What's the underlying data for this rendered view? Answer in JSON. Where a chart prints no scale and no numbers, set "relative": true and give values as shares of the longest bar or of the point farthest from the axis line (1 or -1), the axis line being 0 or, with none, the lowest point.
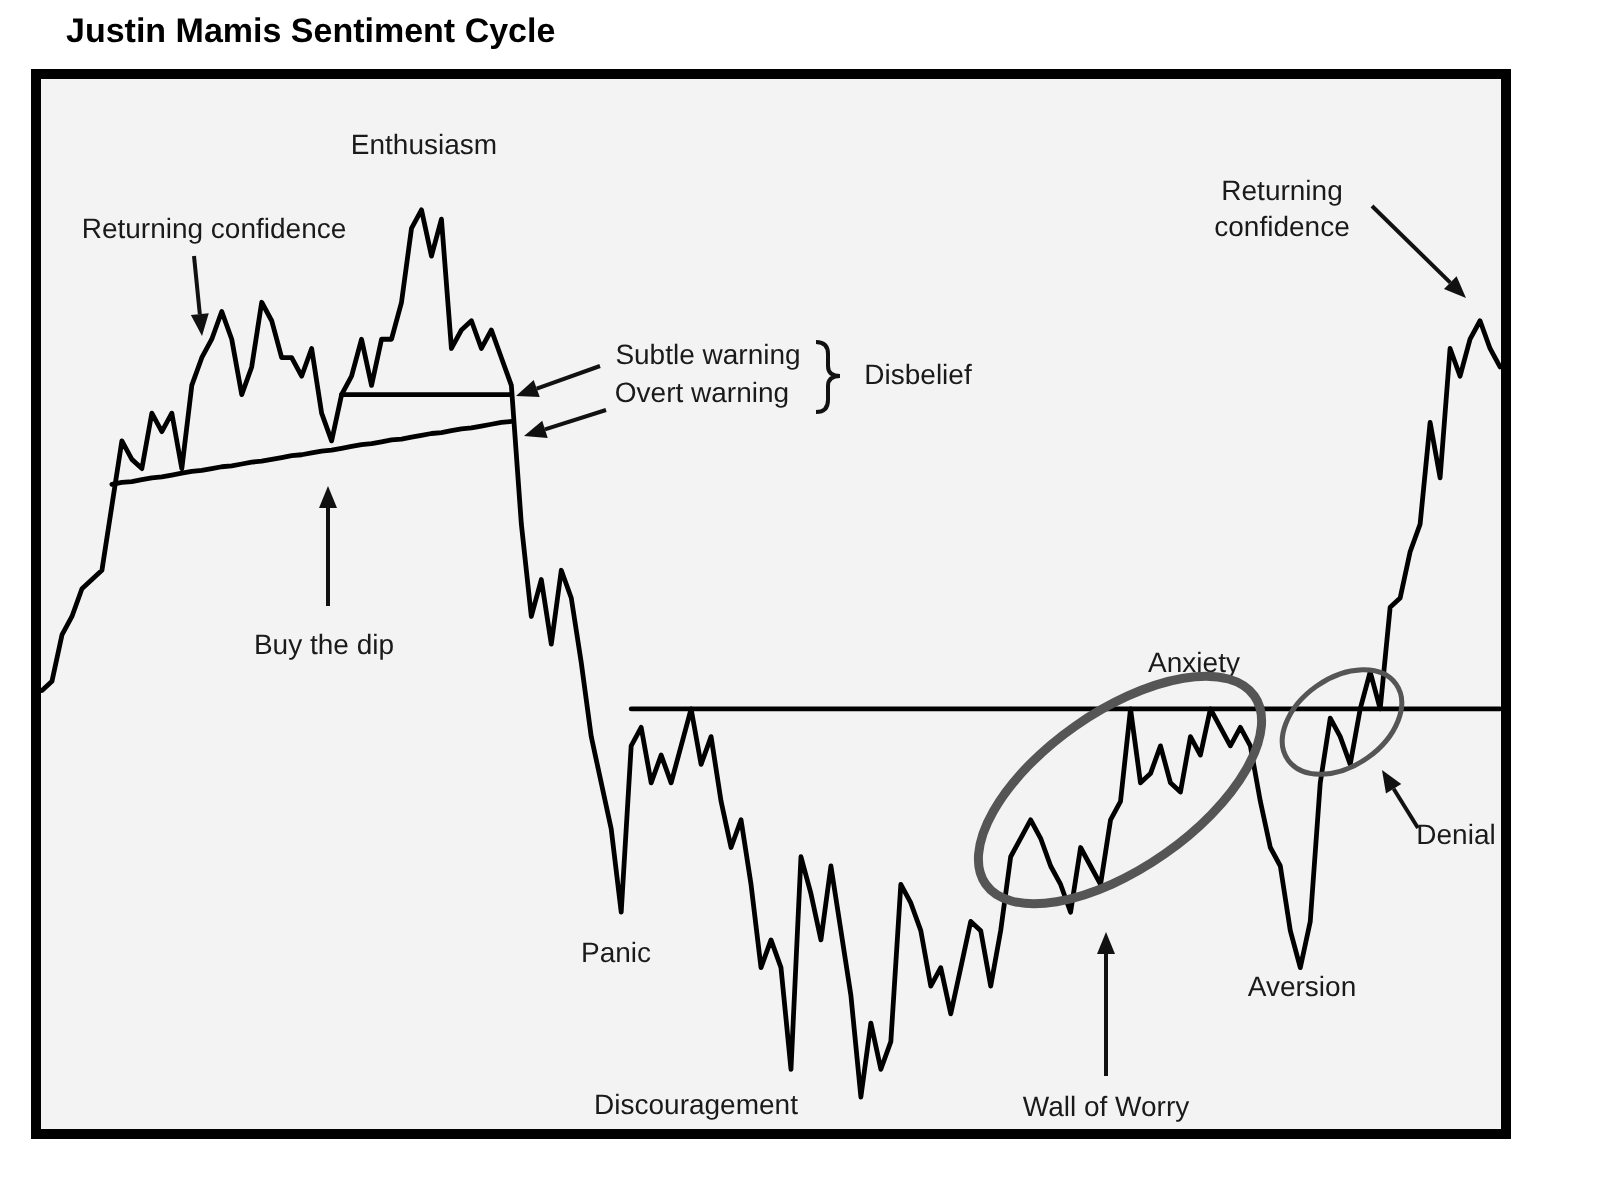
{
  "chart_data": {
    "type": "line",
    "title": "Justin Mamis Sentiment Cycle",
    "relative": true,
    "tick_labels": false,
    "categories": [
      null,
      null,
      null,
      null,
      null,
      null,
      null,
      null,
      null,
      null,
      null,
      null,
      null,
      null,
      null,
      null,
      null,
      null,
      null,
      null,
      null,
      null,
      null,
      null,
      null,
      null,
      null,
      null,
      null,
      null,
      null,
      null,
      null,
      null,
      null,
      null,
      null,
      null,
      null,
      null,
      null,
      null,
      null,
      null,
      null,
      null,
      null,
      null,
      null,
      null,
      null,
      null,
      null,
      null,
      null,
      null,
      null,
      null,
      null,
      null,
      null,
      null,
      null,
      null,
      null,
      null,
      null,
      null,
      null,
      null,
      null,
      null,
      null,
      null,
      null,
      null,
      null,
      null,
      null,
      null,
      null,
      null,
      null,
      null,
      null,
      null,
      null,
      null,
      null,
      null,
      null,
      null,
      null,
      null,
      null,
      null,
      null,
      null,
      null,
      null,
      null,
      null,
      null,
      null,
      null,
      null,
      null,
      null,
      null,
      null,
      null,
      null,
      null,
      null,
      null,
      null,
      null,
      null,
      null,
      null,
      null,
      null,
      null,
      null,
      null,
      null,
      null,
      null,
      null,
      null,
      null,
      null,
      null,
      null,
      null,
      null,
      null,
      null,
      null,
      null,
      null,
      null,
      null,
      null,
      null,
      null,
      null
    ],
    "series": [
      {
        "color": "#000000",
        "values": [
          0.48,
          0.49,
          0.54,
          0.56,
          0.59,
          0.6,
          0.61,
          0.68,
          0.75,
          0.73,
          0.72,
          0.78,
          0.76,
          0.78,
          0.72,
          0.81,
          0.84,
          0.86,
          0.89,
          0.86,
          0.8,
          0.83,
          0.9,
          0.88,
          0.84,
          0.84,
          0.82,
          0.85,
          0.78,
          0.75,
          0.8,
          0.82,
          0.86,
          0.81,
          0.86,
          0.86,
          0.9,
          0.98,
          1.0,
          0.95,
          0.99,
          0.85,
          0.87,
          0.88,
          0.85,
          0.87,
          0.84,
          0.81,
          0.66,
          0.56,
          0.6,
          0.53,
          0.61,
          0.58,
          0.51,
          0.43,
          0.38,
          0.33,
          0.24,
          0.42,
          0.44,
          0.38,
          0.41,
          0.38,
          0.42,
          0.46,
          0.4,
          0.43,
          0.36,
          0.31,
          0.34,
          0.27,
          0.18,
          0.21,
          0.18,
          0.07,
          0.3,
          0.26,
          0.21,
          0.29,
          0.22,
          0.15,
          0.04,
          0.12,
          0.07,
          0.1,
          0.27,
          0.25,
          0.22,
          0.16,
          0.18,
          0.13,
          0.18,
          0.23,
          0.22,
          0.16,
          0.22,
          0.3,
          0.32,
          0.34,
          0.32,
          0.29,
          0.27,
          0.24,
          0.31,
          0.29,
          0.27,
          0.34,
          0.36,
          0.46,
          0.38,
          0.39,
          0.42,
          0.38,
          0.37,
          0.43,
          0.41,
          0.46,
          0.44,
          0.42,
          0.44,
          0.42,
          0.36,
          0.31,
          0.29,
          0.22,
          0.18,
          0.23,
          0.38,
          0.45,
          0.43,
          0.4,
          0.46,
          0.5,
          0.46,
          0.57,
          0.58,
          0.63,
          0.66,
          0.77,
          0.71,
          0.85,
          0.82,
          0.86,
          0.88,
          0.85,
          0.83
        ]
      },
      {
        "color": "#000000",
        "values": [
          null,
          null,
          null,
          null,
          null,
          null,
          null,
          0.703,
          0.705,
          0.706,
          0.708,
          0.71,
          0.711,
          0.713,
          0.715,
          0.717,
          0.718,
          0.72,
          0.722,
          0.723,
          0.725,
          0.727,
          0.728,
          0.73,
          0.732,
          0.734,
          0.735,
          0.737,
          0.739,
          0.74,
          0.742,
          0.744,
          0.746,
          0.747,
          0.749,
          0.751,
          0.752,
          0.754,
          0.756,
          0.758,
          0.759,
          0.761,
          0.763,
          0.764,
          0.766,
          0.768,
          0.77,
          0.771,
          null,
          null,
          null,
          null,
          null,
          null,
          null,
          null,
          null,
          null,
          null,
          null,
          null,
          null,
          null,
          null,
          null,
          null,
          null,
          null,
          null,
          null,
          null,
          null,
          null,
          null,
          null,
          null,
          null,
          null,
          null,
          null,
          null,
          null,
          null,
          null,
          null,
          null,
          null,
          null,
          null,
          null,
          null,
          null,
          null,
          null,
          null,
          null,
          null,
          null,
          null,
          null,
          null,
          null,
          null,
          null,
          null,
          null,
          null,
          null,
          null,
          null,
          null,
          null,
          null,
          null,
          null,
          null,
          null,
          null,
          null,
          null,
          null,
          null,
          null,
          null,
          null,
          null,
          null,
          null,
          null,
          null,
          null,
          null,
          null,
          null,
          null,
          null,
          null,
          null,
          null,
          null,
          null,
          null,
          null,
          null,
          null,
          null,
          null
        ]
      },
      {
        "color": "#000000",
        "values": [
          null,
          null,
          null,
          null,
          null,
          null,
          null,
          null,
          null,
          null,
          null,
          null,
          null,
          null,
          null,
          null,
          null,
          null,
          null,
          null,
          null,
          null,
          null,
          null,
          null,
          null,
          null,
          null,
          null,
          null,
          0.8,
          0.8,
          0.8,
          0.8,
          0.8,
          0.8,
          0.8,
          0.8,
          0.8,
          0.8,
          0.8,
          0.8,
          0.8,
          0.8,
          0.8,
          0.8,
          0.8,
          0.8,
          null,
          null,
          null,
          null,
          null,
          null,
          null,
          null,
          null,
          null,
          null,
          null,
          null,
          null,
          null,
          null,
          null,
          null,
          null,
          null,
          null,
          null,
          null,
          null,
          null,
          null,
          null,
          null,
          null,
          null,
          null,
          null,
          null,
          null,
          null,
          null,
          null,
          null,
          null,
          null,
          null,
          null,
          null,
          null,
          null,
          null,
          null,
          null,
          null,
          null,
          null,
          null,
          null,
          null,
          null,
          null,
          null,
          null,
          null,
          null,
          null,
          null,
          null,
          null,
          null,
          null,
          null,
          null,
          null,
          null,
          null,
          null,
          null,
          null,
          null,
          null,
          null,
          null,
          null,
          null,
          null,
          null,
          null,
          null,
          null,
          null,
          null,
          null,
          null,
          null,
          null,
          null,
          null,
          null,
          null,
          null,
          null,
          null,
          null
        ]
      },
      {
        "color": "#000000",
        "values": [
          null,
          null,
          null,
          null,
          null,
          null,
          null,
          null,
          null,
          null,
          null,
          null,
          null,
          null,
          null,
          null,
          null,
          null,
          null,
          null,
          null,
          null,
          null,
          null,
          null,
          null,
          null,
          null,
          null,
          null,
          null,
          null,
          null,
          null,
          null,
          null,
          null,
          null,
          null,
          null,
          null,
          null,
          null,
          null,
          null,
          null,
          null,
          null,
          null,
          null,
          null,
          null,
          null,
          null,
          null,
          null,
          null,
          null,
          null,
          0.46,
          0.46,
          0.46,
          0.46,
          0.46,
          0.46,
          0.46,
          0.46,
          0.46,
          0.46,
          0.46,
          0.46,
          0.46,
          0.46,
          0.46,
          0.46,
          0.46,
          0.46,
          0.46,
          0.46,
          0.46,
          0.46,
          0.46,
          0.46,
          0.46,
          0.46,
          0.46,
          0.46,
          0.46,
          0.46,
          0.46,
          0.46,
          0.46,
          0.46,
          0.46,
          0.46,
          0.46,
          0.46,
          0.46,
          0.46,
          0.46,
          0.46,
          0.46,
          0.46,
          0.46,
          0.46,
          0.46,
          0.46,
          0.46,
          0.46,
          0.46,
          0.46,
          0.46,
          0.46,
          0.46,
          0.46,
          0.46,
          0.46,
          0.46,
          0.46,
          0.46,
          0.46,
          0.46,
          0.46,
          0.46,
          0.46,
          0.46,
          0.46,
          0.46,
          0.46,
          0.46,
          0.46,
          0.46,
          0.46,
          0.46,
          0.46,
          0.46,
          0.46,
          0.46,
          0.46,
          0.46,
          0.46,
          0.46,
          0.46,
          0.46,
          0.46,
          0.46,
          0.46
        ]
      }
    ],
    "annotations": [
      "Enthusiasm",
      "Returning confidence",
      "Subtle warning",
      "Overt warning",
      "Disbelief",
      "Buy the dip",
      "Anxiety",
      "Returning confidence",
      "Denial",
      "Panic",
      "Aversion",
      "Discouragement",
      "Wall of Worry"
    ]
  }
}
